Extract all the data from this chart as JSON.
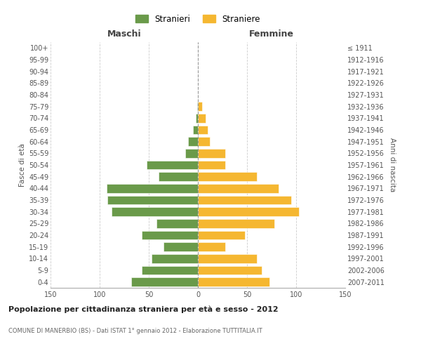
{
  "age_groups": [
    "0-4",
    "5-9",
    "10-14",
    "15-19",
    "20-24",
    "25-29",
    "30-34",
    "35-39",
    "40-44",
    "45-49",
    "50-54",
    "55-59",
    "60-64",
    "65-69",
    "70-74",
    "75-79",
    "80-84",
    "85-89",
    "90-94",
    "95-99",
    "100+"
  ],
  "birth_years": [
    "2007-2011",
    "2002-2006",
    "1997-2001",
    "1992-1996",
    "1987-1991",
    "1982-1986",
    "1977-1981",
    "1972-1976",
    "1967-1971",
    "1962-1966",
    "1957-1961",
    "1952-1956",
    "1947-1951",
    "1942-1946",
    "1937-1941",
    "1932-1936",
    "1927-1931",
    "1922-1926",
    "1917-1921",
    "1912-1916",
    "≤ 1911"
  ],
  "maschi": [
    68,
    57,
    47,
    35,
    57,
    42,
    88,
    92,
    93,
    40,
    52,
    13,
    10,
    5,
    2,
    1,
    0,
    0,
    0,
    0,
    0
  ],
  "femmine": [
    73,
    65,
    60,
    28,
    48,
    78,
    103,
    95,
    82,
    60,
    28,
    28,
    12,
    10,
    8,
    4,
    0,
    0,
    0,
    0,
    0
  ],
  "color_maschi": "#6a9a4a",
  "color_femmine": "#f5b731",
  "title": "Popolazione per cittadinanza straniera per età e sesso - 2012",
  "subtitle": "COMUNE DI MANERBIO (BS) - Dati ISTAT 1° gennaio 2012 - Elaborazione TUTTITALIA.IT",
  "xlabel_left": "Maschi",
  "xlabel_right": "Femmine",
  "ylabel_left": "Fasce di età",
  "ylabel_right": "Anni di nascita",
  "legend_maschi": "Stranieri",
  "legend_femmine": "Straniere",
  "xlim": 150,
  "background_color": "#ffffff",
  "grid_color": "#cccccc"
}
